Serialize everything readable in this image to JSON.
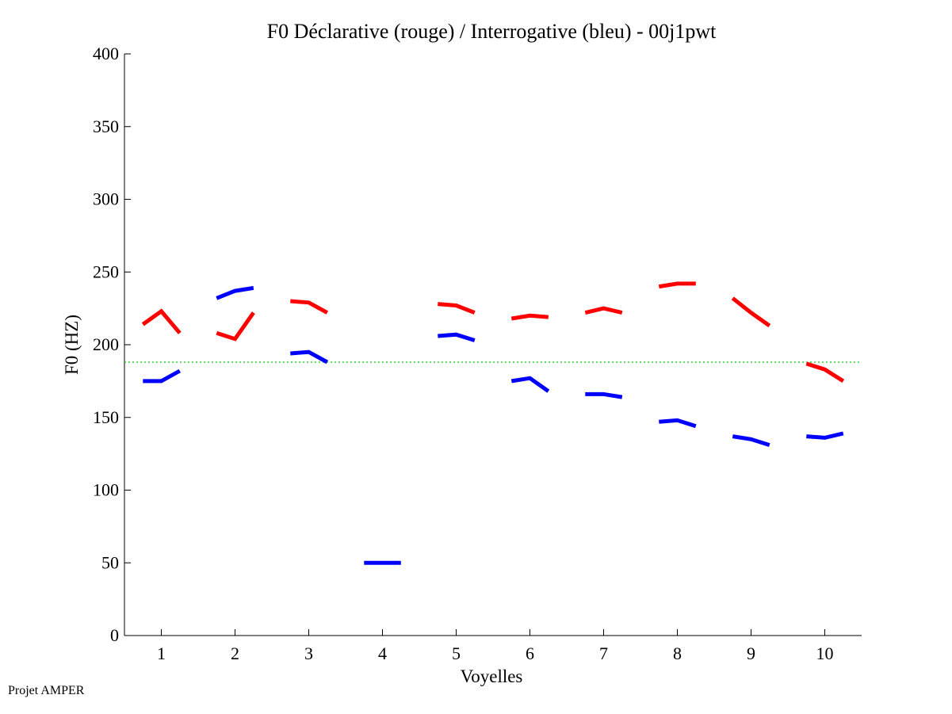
{
  "chart_data": {
    "type": "line",
    "title": "F0 Déclarative (rouge) / Interrogative (bleu) - 00j1pwt",
    "xlabel": "Voyelles",
    "ylabel": "F0 (HZ)",
    "xlim": [
      0.5,
      10.5
    ],
    "ylim": [
      0,
      400
    ],
    "xticks": [
      "1",
      "2",
      "3",
      "4",
      "5",
      "6",
      "7",
      "8",
      "9",
      "10"
    ],
    "yticks": [
      "0",
      "50",
      "100",
      "150",
      "200",
      "250",
      "300",
      "350",
      "400"
    ],
    "grid": false,
    "reference_line": {
      "y": 188,
      "color": "#00cc00",
      "style": "dotted"
    },
    "series": [
      {
        "color": "#ff0000",
        "segments": [
          [
            [
              0.75,
              214
            ],
            [
              1.0,
              223
            ],
            [
              1.25,
              208
            ]
          ],
          [
            [
              1.75,
              208
            ],
            [
              2.0,
              204
            ],
            [
              2.25,
              222
            ]
          ],
          [
            [
              2.75,
              230
            ],
            [
              3.0,
              229
            ],
            [
              3.25,
              222
            ]
          ],
          [
            [
              4.75,
              228
            ],
            [
              5.0,
              227
            ],
            [
              5.25,
              222
            ]
          ],
          [
            [
              5.75,
              218
            ],
            [
              6.0,
              220
            ],
            [
              6.25,
              219
            ]
          ],
          [
            [
              6.75,
              222
            ],
            [
              7.0,
              225
            ],
            [
              7.25,
              222
            ]
          ],
          [
            [
              7.75,
              240
            ],
            [
              8.0,
              242
            ],
            [
              8.25,
              242
            ]
          ],
          [
            [
              8.75,
              232
            ],
            [
              9.0,
              222
            ],
            [
              9.25,
              213
            ]
          ],
          [
            [
              9.75,
              187
            ],
            [
              10.0,
              183
            ],
            [
              10.25,
              175
            ]
          ]
        ]
      },
      {
        "color": "#0000ff",
        "segments": [
          [
            [
              0.75,
              175
            ],
            [
              1.0,
              175
            ],
            [
              1.25,
              182
            ]
          ],
          [
            [
              1.75,
              232
            ],
            [
              2.0,
              237
            ],
            [
              2.25,
              239
            ]
          ],
          [
            [
              2.75,
              194
            ],
            [
              3.0,
              195
            ],
            [
              3.25,
              188
            ]
          ],
          [
            [
              3.75,
              50
            ],
            [
              4.0,
              50
            ],
            [
              4.25,
              50
            ]
          ],
          [
            [
              4.75,
              206
            ],
            [
              5.0,
              207
            ],
            [
              5.25,
              203
            ]
          ],
          [
            [
              5.75,
              175
            ],
            [
              6.0,
              177
            ],
            [
              6.25,
              168
            ]
          ],
          [
            [
              6.75,
              166
            ],
            [
              7.0,
              166
            ],
            [
              7.25,
              164
            ]
          ],
          [
            [
              7.75,
              147
            ],
            [
              8.0,
              148
            ],
            [
              8.25,
              144
            ]
          ],
          [
            [
              8.75,
              137
            ],
            [
              9.0,
              135
            ],
            [
              9.25,
              131
            ]
          ],
          [
            [
              9.75,
              137
            ],
            [
              10.0,
              136
            ],
            [
              10.25,
              139
            ]
          ]
        ]
      }
    ]
  },
  "footer": {
    "text": "Projet AMPER"
  }
}
